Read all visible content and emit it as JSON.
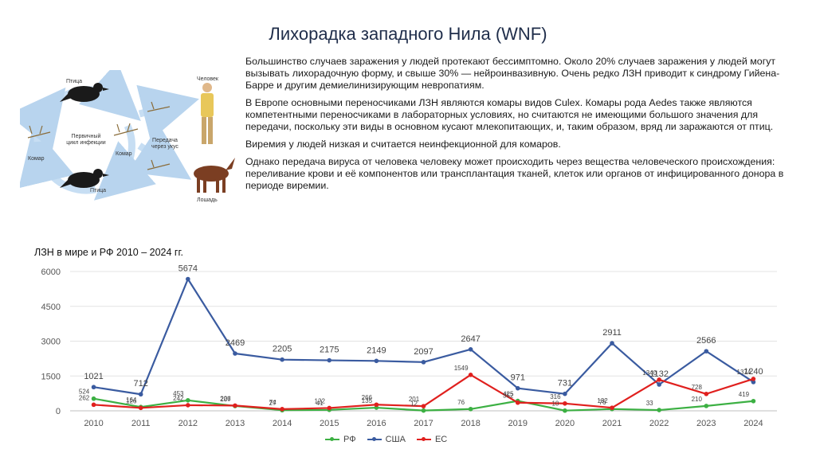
{
  "slide": {
    "title": "Лихорадка западного Нила (WNF)"
  },
  "diagram": {
    "bird_top": "Птица",
    "bird_bottom": "Птица",
    "mosquito_left": "Комар",
    "mosquito_center": "Комар",
    "cycle_label": "Первичный цикл инфекции",
    "transmission_label": "Передача через укус",
    "human": "Человек",
    "horse": "Лошадь"
  },
  "text": {
    "p1": "Большинство случаев заражения у людей протекают бессимптомно. Около 20% случаев заражения у людей могут вызывать лихорадочную форму, и свыше 30% — нейроинвазивную. Очень редко ЛЗН приводит к синдрому Гийена-Барре и другим демиелинизирующим невропатиям.",
    "p2": "В Европе основными переносчиками ЛЗН являются комары видов Culex. Комары рода Aedes также являются компетентными переносчиками в лабораторных условиях, но считаются не имеющими большого значения для передачи, поскольку эти виды в основном кусают млекопитающих, и, таким образом, вряд ли заражаются от птиц.",
    "p3": "Виремия у людей низкая и считается неинфекционной для комаров.",
    "p4": "Однако передача вируса от человека человеку может происходить через вещества человеческого происхождения: переливание крови и её компонентов или трансплантация тканей, клеток или органов от инфицированного донора в периоде виремии."
  },
  "chart_data": {
    "type": "line",
    "title": "ЛЗН в мире и РФ 2010 – 2024 гг.",
    "xlabel": "",
    "ylabel": "",
    "categories": [
      "2010",
      "2011",
      "2012",
      "2013",
      "2014",
      "2015",
      "2016",
      "2017",
      "2018",
      "2019",
      "2020",
      "2021",
      "2022",
      "2023",
      "2024"
    ],
    "ylim": [
      0,
      6000
    ],
    "yticks": [
      "0",
      "1500",
      "3000",
      "4500",
      "6000"
    ],
    "grid": true,
    "legend_position": "bottom",
    "series": [
      {
        "name": "РФ",
        "color": "#3cb043",
        "values": [
          524,
          164,
          453,
          207,
          27,
          41,
          135,
          12,
          76,
          425,
          10,
          76,
          33,
          210,
          419
        ]
      },
      {
        "name": "США",
        "color": "#3a5ba0",
        "values": [
          1021,
          712,
          5674,
          2469,
          2205,
          2175,
          2149,
          2097,
          2647,
          971,
          731,
          2911,
          1132,
          2566,
          1240
        ]
      },
      {
        "name": "ЕС",
        "color": "#e0201e",
        "values": [
          262,
          126,
          242,
          226,
          74,
          122,
          266,
          201,
          1549,
          352,
          316,
          132,
          1340,
          728,
          1374
        ]
      }
    ]
  }
}
